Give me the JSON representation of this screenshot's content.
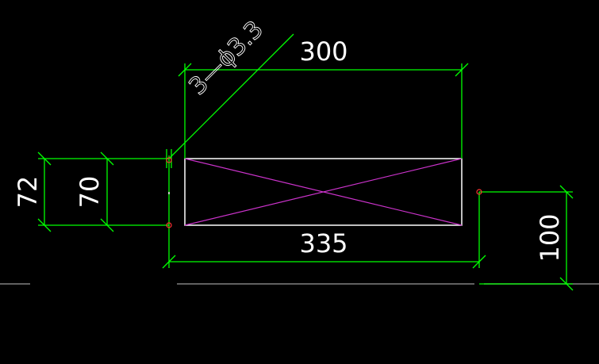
{
  "drawing": {
    "labels": {
      "width_top": "300",
      "width_bottom": "335",
      "height_outer": "72",
      "height_inner": "70",
      "offset_right": "100",
      "hole_callout": "3—ϕ3.3"
    },
    "colors": {
      "background": "#000000",
      "dimension": "#00ff00",
      "outline": "#ffffff",
      "cross": "#cc33cc",
      "marker": "#ff3333",
      "baseline": "#808080"
    }
  }
}
